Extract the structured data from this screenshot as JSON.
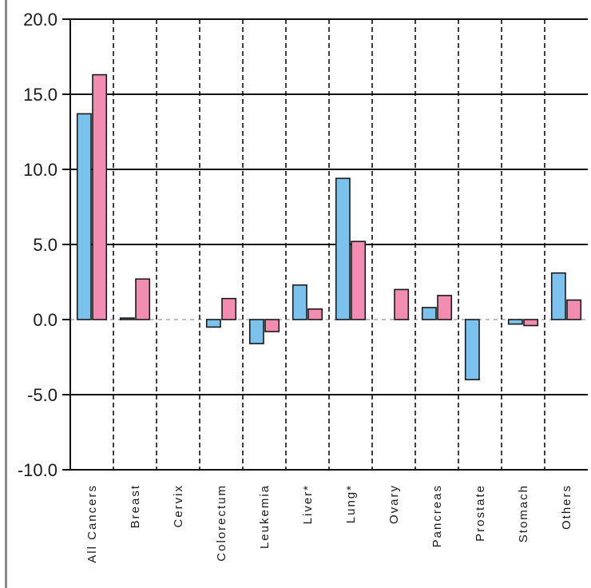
{
  "chart_data": {
    "type": "bar",
    "title": "",
    "xlabel": "",
    "ylabel": "",
    "ylim": [
      -10,
      20
    ],
    "yticks": [
      20,
      15,
      10,
      5,
      0,
      -5,
      -10
    ],
    "ytick_labels": [
      "20.0",
      "15.0",
      "10.0",
      "5.0",
      "0.0",
      "-5.0",
      "-10.0"
    ],
    "grid": true,
    "legend": "none",
    "categories": [
      "All Cancers",
      "Breast",
      "Cervix",
      "Colorectum",
      "Leukemia",
      "Liver*",
      "Lung*",
      "Ovary",
      "Pancreas",
      "Prostate",
      "Stomach",
      "Others"
    ],
    "series": [
      {
        "color": "#7cc2ec",
        "values": [
          13.7,
          0.1,
          null,
          -0.5,
          -1.6,
          2.3,
          9.4,
          null,
          0.8,
          -4.0,
          -0.3,
          3.1
        ]
      },
      {
        "color": "#f28cb0",
        "values": [
          16.3,
          2.7,
          null,
          1.4,
          -0.8,
          0.7,
          5.2,
          2.0,
          1.6,
          null,
          -0.4,
          1.3
        ]
      }
    ]
  }
}
